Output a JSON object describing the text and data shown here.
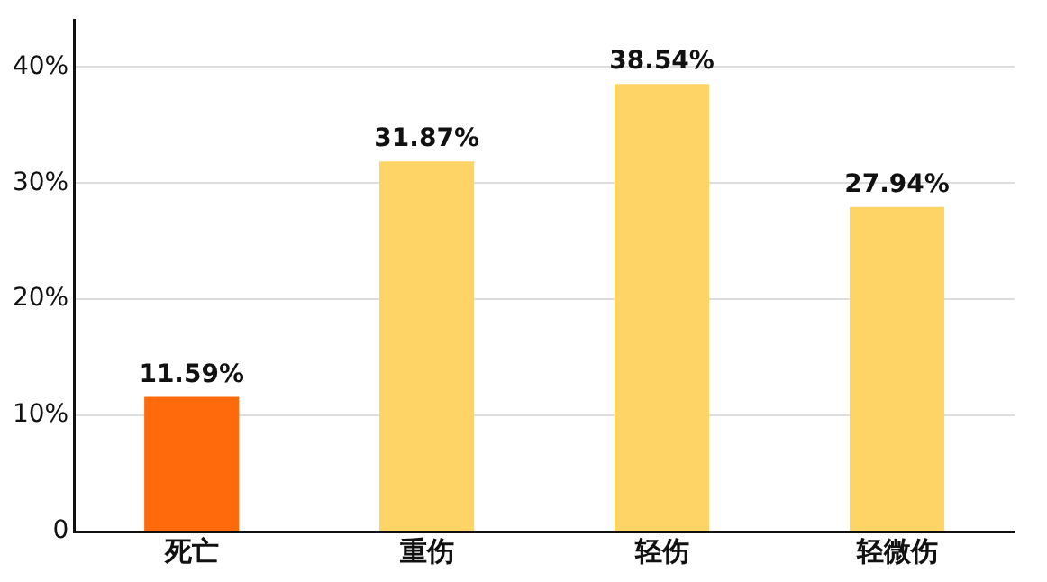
{
  "chart_data": {
    "type": "bar",
    "categories": [
      "死亡",
      "重伤",
      "轻伤",
      "轻微伤"
    ],
    "values": [
      11.59,
      31.87,
      38.54,
      27.94
    ],
    "colors": [
      "#ff6a0d",
      "#ffd466",
      "#ffd466",
      "#ffd466"
    ],
    "value_labels": [
      "11.59%",
      "31.87%",
      "38.54%",
      "27.94%"
    ],
    "ylim": [
      0,
      44
    ],
    "yticks": [
      0,
      {
        "value": 10,
        "label": "10%"
      },
      {
        "value": 20,
        "label": "20%"
      },
      {
        "value": 30,
        "label": "30%"
      },
      {
        "value": 40,
        "label": "40%"
      }
    ],
    "grid": "y",
    "legend": false
  }
}
